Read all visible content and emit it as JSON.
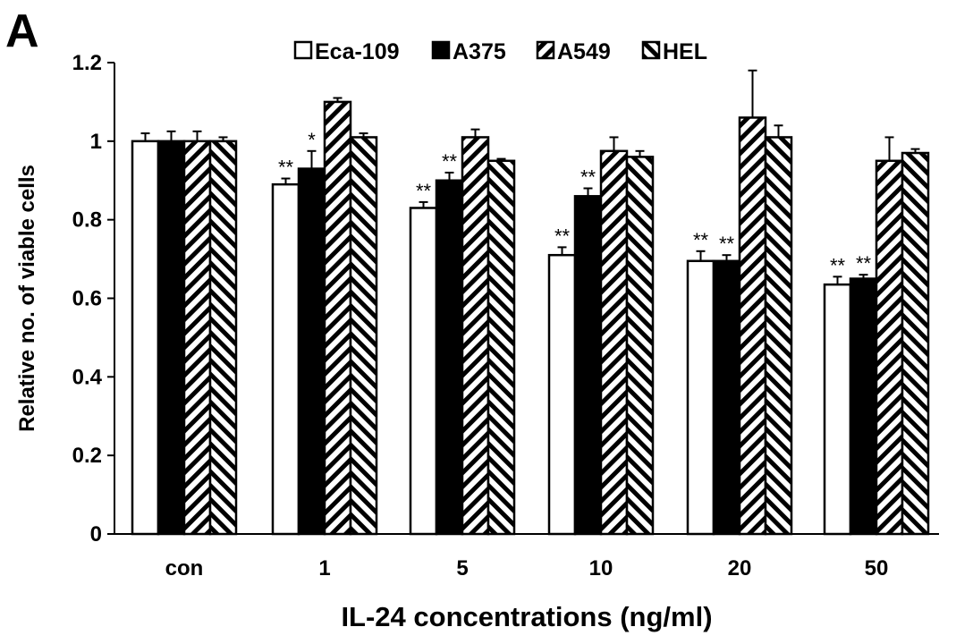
{
  "panel_label": "A",
  "colors": {
    "axis": "#000000",
    "fill_white": "#ffffff",
    "fill_black": "#000000"
  },
  "chart_data": {
    "type": "bar",
    "xlabel": "IL-24 concentrations (ng/ml)",
    "ylabel": "Relative no. of viable cells",
    "ylim": [
      0,
      1.2
    ],
    "yticks": [
      0,
      0.2,
      0.4,
      0.6,
      0.8,
      1,
      1.2
    ],
    "ytick_labels": [
      "0",
      "0.2",
      "0.4",
      "0.6",
      "0.8",
      "1",
      "1.2"
    ],
    "categories": [
      "con",
      "1",
      "5",
      "10",
      "20",
      "50"
    ],
    "legend_position": "top",
    "grid": false,
    "series": [
      {
        "name": "Eca-109",
        "pattern": "white",
        "values": [
          1.0,
          0.89,
          0.83,
          0.71,
          0.695,
          0.635
        ],
        "errors": [
          0.02,
          0.015,
          0.015,
          0.02,
          0.025,
          0.02
        ],
        "significance": [
          "",
          "**",
          "**",
          "**",
          "**",
          "**"
        ]
      },
      {
        "name": "A375",
        "pattern": "black",
        "values": [
          1.0,
          0.93,
          0.9,
          0.86,
          0.695,
          0.65
        ],
        "errors": [
          0.025,
          0.045,
          0.02,
          0.02,
          0.015,
          0.01
        ],
        "significance": [
          "",
          "*",
          "**",
          "**",
          "**",
          "**"
        ]
      },
      {
        "name": "A549",
        "pattern": "forward-diagonal",
        "values": [
          1.0,
          1.1,
          1.01,
          0.975,
          1.06,
          0.95
        ],
        "errors": [
          0.025,
          0.01,
          0.02,
          0.035,
          0.12,
          0.06
        ],
        "significance": [
          "",
          "",
          "",
          "",
          "",
          ""
        ]
      },
      {
        "name": "HEL",
        "pattern": "back-diagonal",
        "values": [
          1.0,
          1.01,
          0.95,
          0.96,
          1.01,
          0.97
        ],
        "errors": [
          0.01,
          0.01,
          0.005,
          0.015,
          0.03,
          0.01
        ],
        "significance": [
          "",
          "",
          "",
          "",
          "",
          ""
        ]
      }
    ]
  }
}
